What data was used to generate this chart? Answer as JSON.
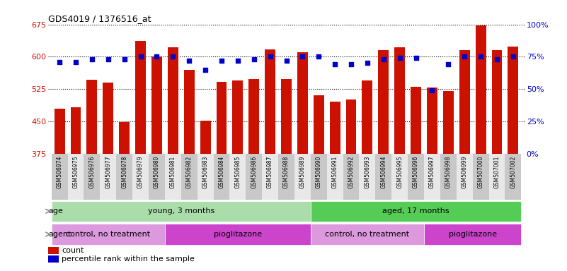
{
  "title": "GDS4019 / 1376516_at",
  "samples": [
    "GSM506974",
    "GSM506975",
    "GSM506976",
    "GSM506977",
    "GSM506978",
    "GSM506979",
    "GSM506980",
    "GSM506981",
    "GSM506982",
    "GSM506983",
    "GSM506984",
    "GSM506985",
    "GSM506986",
    "GSM506987",
    "GSM506988",
    "GSM506989",
    "GSM506990",
    "GSM506991",
    "GSM506992",
    "GSM506993",
    "GSM506994",
    "GSM506995",
    "GSM506996",
    "GSM506997",
    "GSM506998",
    "GSM506999",
    "GSM507000",
    "GSM507001",
    "GSM507002"
  ],
  "counts": [
    480,
    482,
    547,
    540,
    448,
    637,
    600,
    622,
    570,
    452,
    542,
    545,
    548,
    617,
    548,
    610,
    510,
    495,
    500,
    545,
    615,
    622,
    530,
    528,
    520,
    615,
    672,
    615,
    623
  ],
  "percentiles": [
    71,
    71,
    73,
    73,
    73,
    75,
    75,
    75,
    72,
    65,
    72,
    72,
    73,
    75,
    72,
    75,
    75,
    69,
    69,
    70,
    73,
    74,
    74,
    49,
    69,
    75,
    75,
    73,
    75
  ],
  "ylim_left": [
    375,
    675
  ],
  "ylim_right": [
    0,
    100
  ],
  "yticks_left": [
    375,
    450,
    525,
    600,
    675
  ],
  "yticks_right": [
    0,
    25,
    50,
    75,
    100
  ],
  "bar_color": "#cc1100",
  "dot_color": "#0000cc",
  "bg_color": "#ffffff",
  "tick_bg_even": "#c8c8c8",
  "tick_bg_odd": "#e8e8e8",
  "age_groups": [
    {
      "label": "young, 3 months",
      "start": 0,
      "end": 15,
      "color": "#aaddaa"
    },
    {
      "label": "aged, 17 months",
      "start": 16,
      "end": 28,
      "color": "#55cc55"
    }
  ],
  "agent_groups": [
    {
      "label": "control, no treatment",
      "start": 0,
      "end": 6,
      "color": "#dd99dd"
    },
    {
      "label": "pioglitazone",
      "start": 7,
      "end": 15,
      "color": "#cc44cc"
    },
    {
      "label": "control, no treatment",
      "start": 16,
      "end": 22,
      "color": "#dd99dd"
    },
    {
      "label": "pioglitazone",
      "start": 23,
      "end": 28,
      "color": "#cc44cc"
    }
  ],
  "legend_count_label": "count",
  "legend_pct_label": "percentile rank within the sample",
  "age_label": "age",
  "agent_label": "agent",
  "arrow_color": "#888888"
}
